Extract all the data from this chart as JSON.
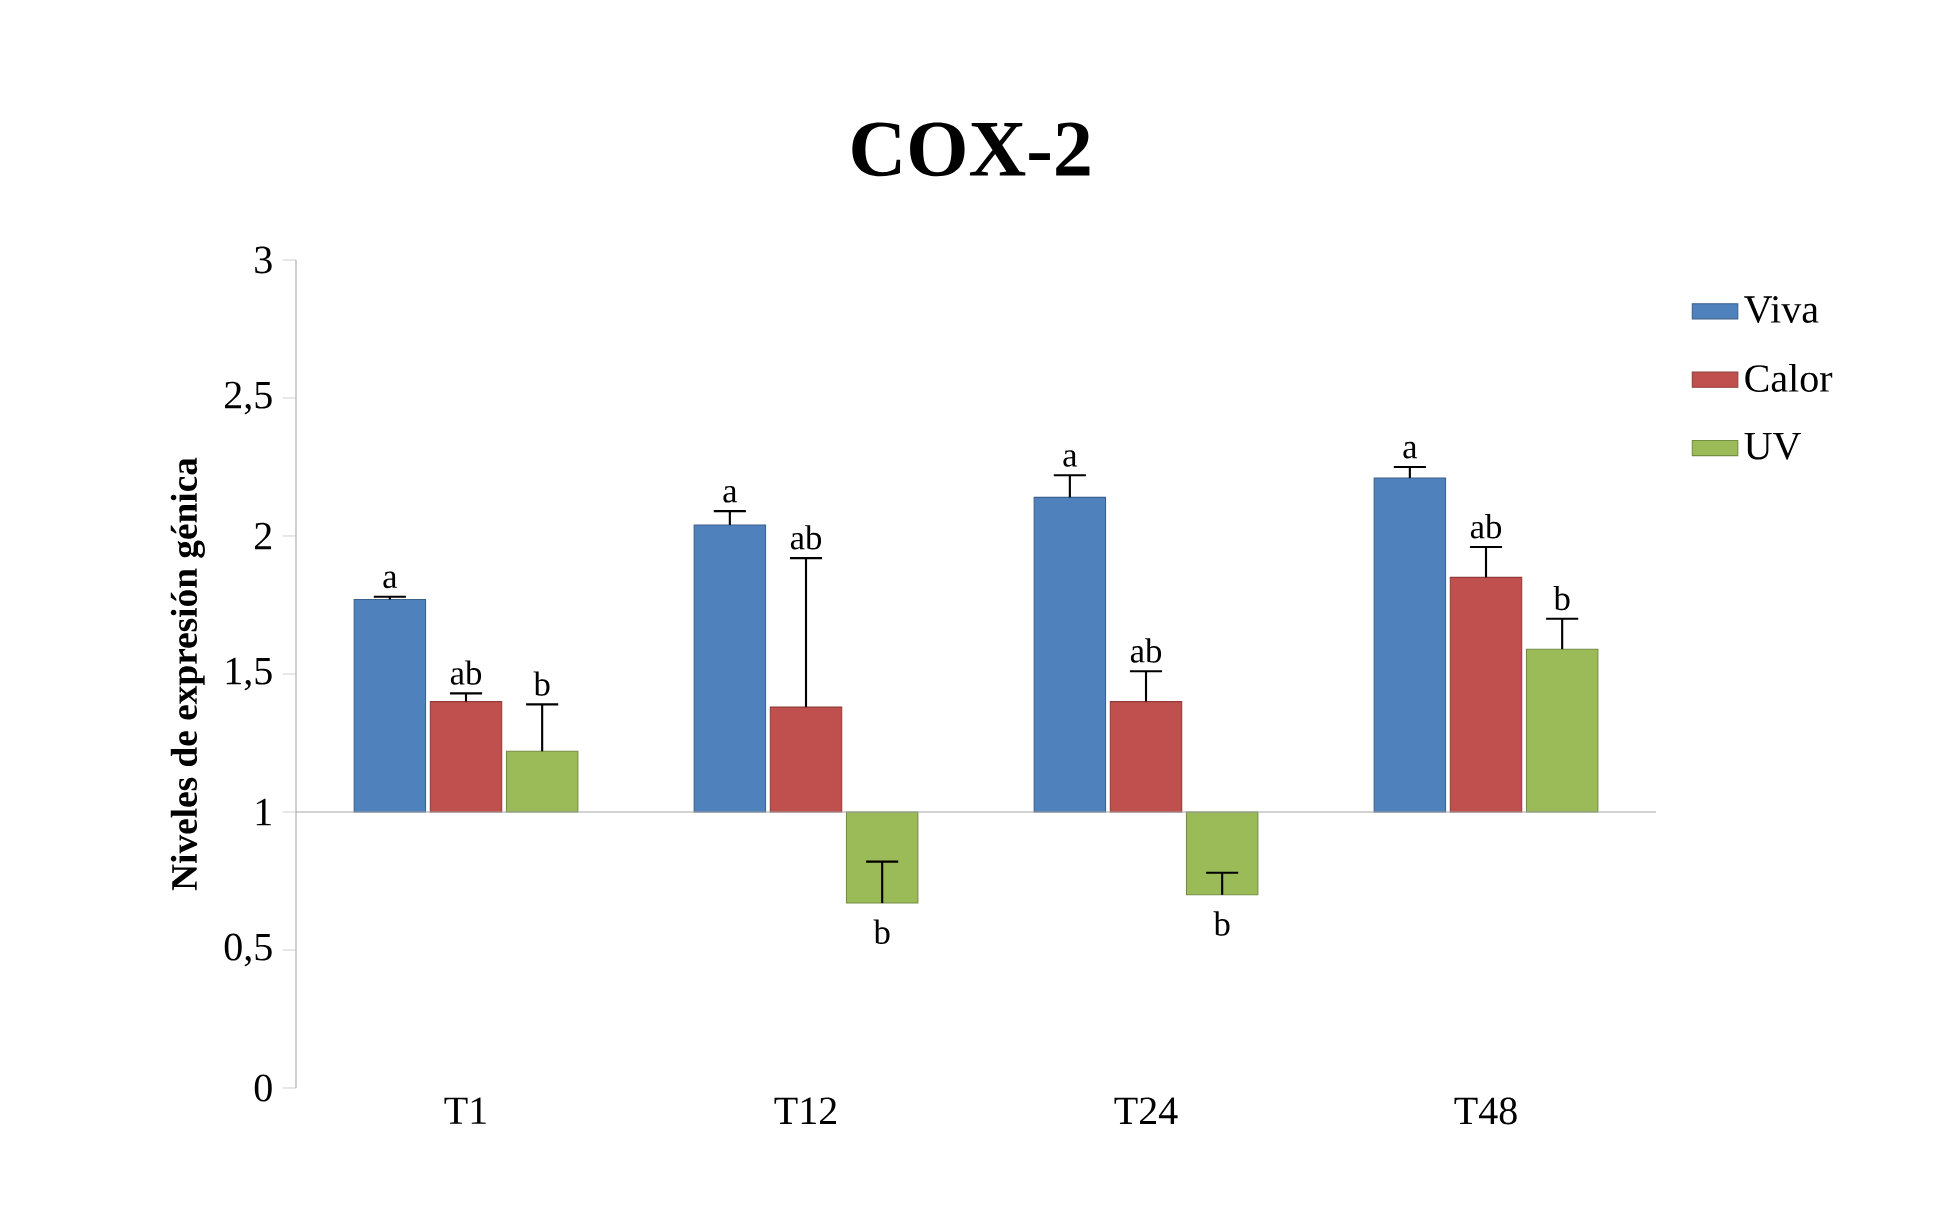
{
  "chart_data": {
    "type": "bar",
    "title": "COX-2",
    "ylabel": "Niveles de expresión génica",
    "categories": [
      "T1",
      "T12",
      "T24",
      "T48"
    ],
    "series": [
      {
        "name": "Viva",
        "color": "#4f81bd",
        "base": [
          1,
          1,
          1,
          1
        ],
        "values": [
          0.77,
          1.04,
          1.14,
          1.21
        ],
        "errors": [
          [
            1.77,
            1.78
          ],
          [
            2.04,
            2.09
          ],
          [
            2.14,
            2.22
          ],
          [
            2.21,
            2.25
          ]
        ]
      },
      {
        "name": "Calor",
        "color": "#c0504d",
        "base": [
          1,
          1,
          1,
          1
        ],
        "values": [
          0.4,
          0.38,
          0.4,
          0.85
        ],
        "errors": [
          [
            1.4,
            1.43
          ],
          [
            1.38,
            1.92
          ],
          [
            1.4,
            1.51
          ],
          [
            1.85,
            1.96
          ]
        ]
      },
      {
        "name": "UV",
        "color": "#9bbb59",
        "base": [
          1,
          1,
          1,
          1
        ],
        "values": [
          0.22,
          -0.33,
          -0.3,
          0.59
        ],
        "errors": [
          [
            1.22,
            1.39
          ],
          [
            0.67,
            0.82
          ],
          [
            0.7,
            0.78
          ],
          [
            1.59,
            1.7
          ]
        ]
      }
    ],
    "ylim": [
      0,
      3
    ],
    "yticks": [
      0,
      {
        "value": 0.5,
        "label": "0,5"
      },
      1,
      {
        "value": 1.5,
        "label": "1,5"
      },
      2,
      {
        "value": 2.5,
        "label": "2,5"
      },
      3
    ],
    "legend": "right",
    "ref_lines": [
      {
        "axis": "y",
        "value": 1,
        "color": "#a6a6a6"
      }
    ],
    "annotations": [
      "a",
      "ab",
      "b",
      "a",
      "ab",
      "b",
      "a",
      "ab",
      "b",
      "a",
      "ab",
      "b"
    ]
  }
}
